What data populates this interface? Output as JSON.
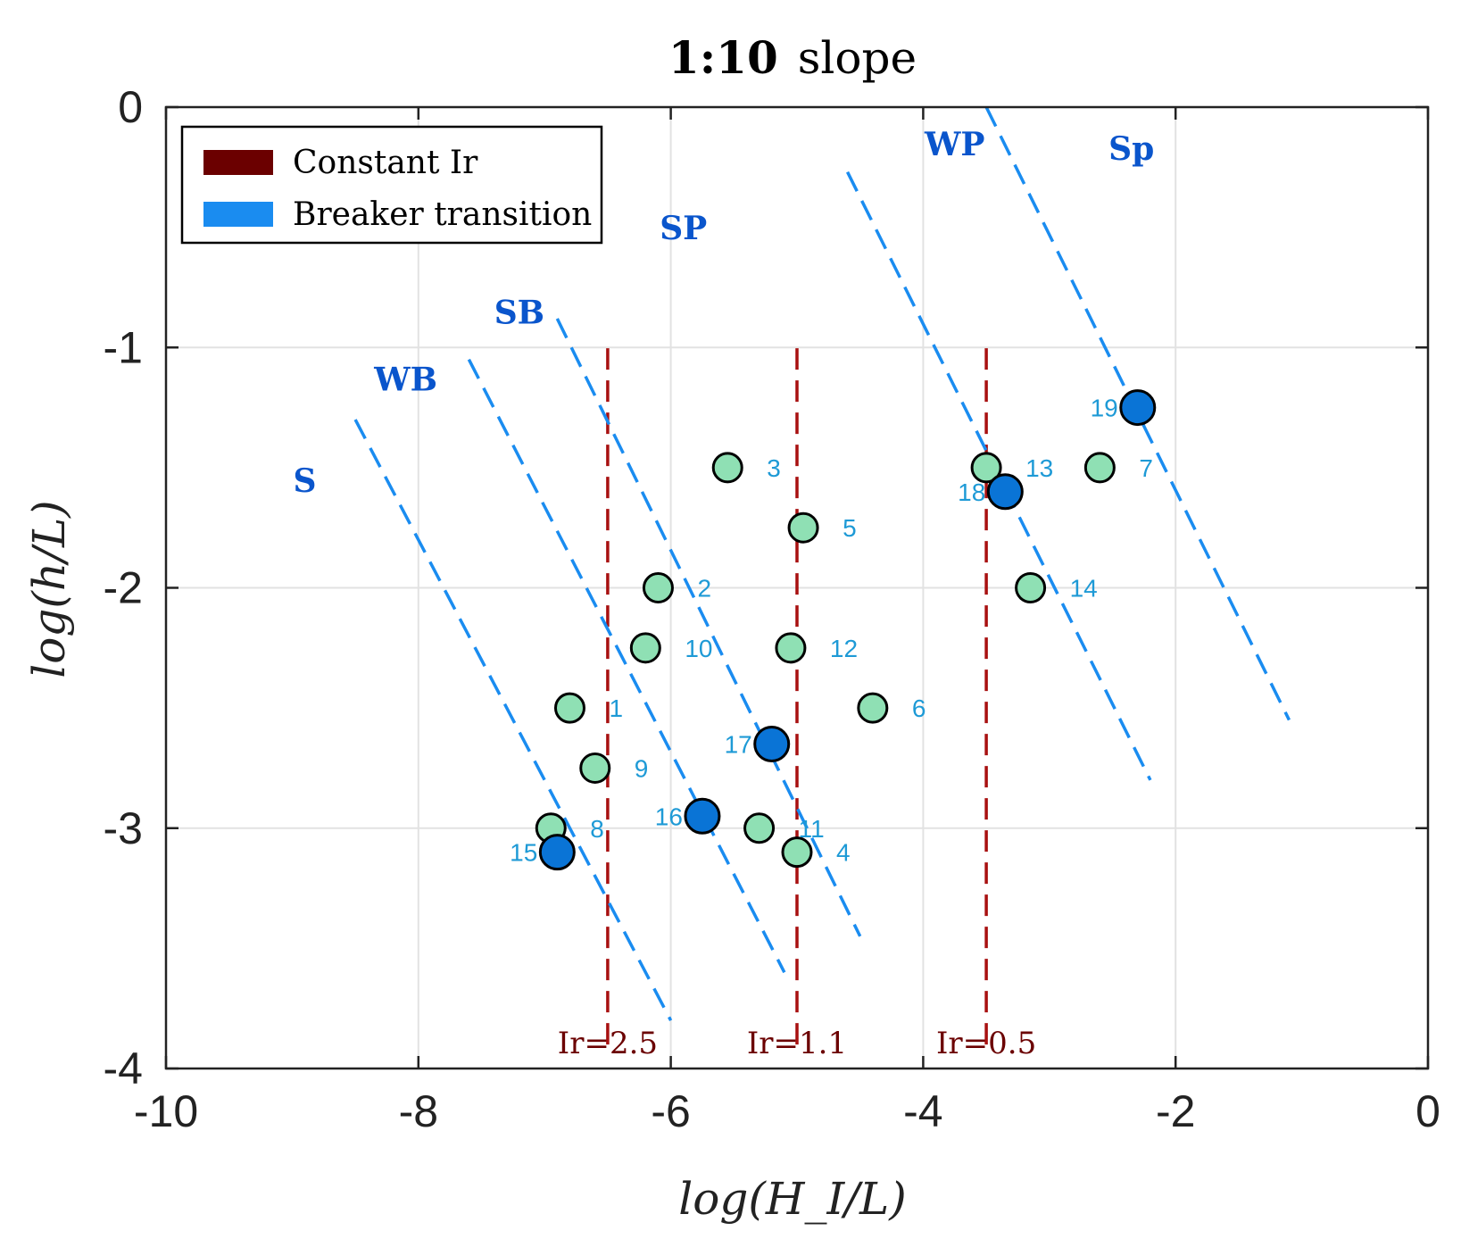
{
  "chart_data": {
    "type": "scatter",
    "title": {
      "bold": "1:10",
      "rest": "slope"
    },
    "xlabel": "log(H_I/L)",
    "ylabel": "log(h/L)",
    "xlim": [
      -10,
      0
    ],
    "ylim": [
      -4,
      0
    ],
    "xticks": [
      "-10",
      "-8",
      "-6",
      "-4",
      "-2",
      "0"
    ],
    "yticks": [
      "0",
      "-1",
      "-2",
      "-3",
      "-4"
    ],
    "grid": true,
    "legend": {
      "position": "top-left",
      "entries": [
        {
          "label": "Constant Ir",
          "color": "#6b0000"
        },
        {
          "label": "Breaker transition",
          "color": "#1a8cf0"
        }
      ]
    },
    "constant_ir_lines": [
      {
        "label": "Ir=2.5",
        "x": -6.5,
        "y": [
          -3.9,
          -0.98
        ]
      },
      {
        "label": "Ir=1.1",
        "x": -5.0,
        "y": [
          -3.9,
          -0.98
        ]
      },
      {
        "label": "Ir=0.5",
        "x": -3.5,
        "y": [
          -3.9,
          -0.98
        ]
      }
    ],
    "transition_lines": [
      {
        "from": [
          -8.5,
          -1.3
        ],
        "to": [
          -6.0,
          -3.8
        ]
      },
      {
        "from": [
          -7.6,
          -1.05
        ],
        "to": [
          -5.1,
          -3.6
        ]
      },
      {
        "from": [
          -6.9,
          -0.88
        ],
        "to": [
          -4.5,
          -3.45
        ]
      },
      {
        "from": [
          -4.6,
          -0.27
        ],
        "to": [
          -2.2,
          -2.8
        ]
      },
      {
        "from": [
          -3.5,
          0.0
        ],
        "to": [
          -1.1,
          -2.55
        ]
      }
    ],
    "regions": [
      {
        "label": "S",
        "x": -8.9,
        "y": -1.6
      },
      {
        "label": "WB",
        "x": -8.1,
        "y": -1.18
      },
      {
        "label": "SB",
        "x": -7.2,
        "y": -0.9
      },
      {
        "label": "SP",
        "x": -5.9,
        "y": -0.55
      },
      {
        "label": "WP",
        "x": -3.75,
        "y": -0.2
      },
      {
        "label": "Sp",
        "x": -2.35,
        "y": -0.22
      }
    ],
    "series": [
      {
        "marker": "light",
        "color": "#8fe0b4",
        "points": [
          {
            "id": "1",
            "x": -6.8,
            "y": -2.5
          },
          {
            "id": "2",
            "x": -6.1,
            "y": -2.0
          },
          {
            "id": "3",
            "x": -5.55,
            "y": -1.5
          },
          {
            "id": "4",
            "x": -5.0,
            "y": -3.1
          },
          {
            "id": "5",
            "x": -4.95,
            "y": -1.75
          },
          {
            "id": "6",
            "x": -4.4,
            "y": -2.5
          },
          {
            "id": "7",
            "x": -2.6,
            "y": -1.5
          },
          {
            "id": "8",
            "x": -6.95,
            "y": -3.0
          },
          {
            "id": "9",
            "x": -6.6,
            "y": -2.75
          },
          {
            "id": "10",
            "x": -6.2,
            "y": -2.25
          },
          {
            "id": "11",
            "x": -5.3,
            "y": -3.0
          },
          {
            "id": "12",
            "x": -5.05,
            "y": -2.25
          },
          {
            "id": "13",
            "x": -3.5,
            "y": -1.5
          },
          {
            "id": "14",
            "x": -3.15,
            "y": -2.0
          }
        ]
      },
      {
        "marker": "dark",
        "color": "#0a74d6",
        "points": [
          {
            "id": "15",
            "x": -6.9,
            "y": -3.1
          },
          {
            "id": "16",
            "x": -5.75,
            "y": -2.95
          },
          {
            "id": "17",
            "x": -5.2,
            "y": -2.65
          },
          {
            "id": "18",
            "x": -3.35,
            "y": -1.6
          },
          {
            "id": "19",
            "x": -2.3,
            "y": -1.25
          }
        ]
      }
    ]
  }
}
